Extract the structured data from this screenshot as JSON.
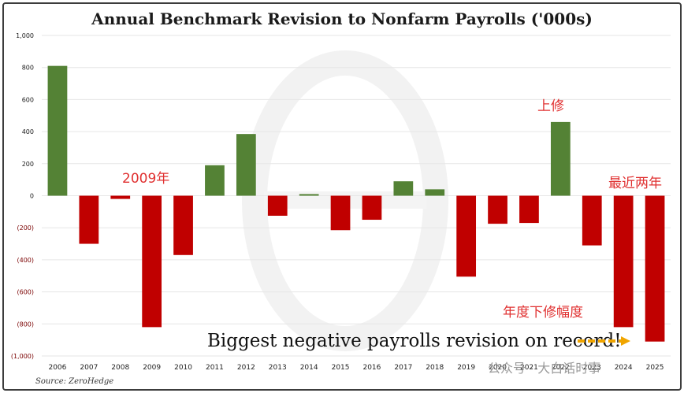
{
  "chart_data": {
    "type": "bar",
    "title": "Annual Benchmark Revision to Nonfarm Payrolls ('000s)",
    "categories": [
      "2006",
      "2007",
      "2008",
      "2009",
      "2010",
      "2011",
      "2012",
      "2013",
      "2014",
      "2015",
      "2016",
      "2017",
      "2018",
      "2019",
      "2020",
      "2021",
      "2022",
      "2023",
      "2024",
      "2025"
    ],
    "values": [
      810,
      -300,
      -20,
      -820,
      -370,
      190,
      385,
      -125,
      10,
      -215,
      -150,
      90,
      40,
      -505,
      -175,
      -170,
      460,
      -310,
      -820,
      -910
    ],
    "ylim": [
      -1000,
      1000
    ],
    "yticks": [
      1000,
      800,
      600,
      400,
      200,
      0,
      -200,
      -400,
      -600,
      -800,
      -1000
    ],
    "ytick_labels": [
      "1,000",
      "800",
      "600",
      "400",
      "200",
      "0",
      "(200)",
      "(400)",
      "(600)",
      "(800)",
      "(1,000)"
    ],
    "xlabel": "",
    "ylabel": "",
    "grid": true,
    "colors": {
      "positive": "#548235",
      "negative": "#c00000"
    },
    "annotations": {
      "a2009": "2009年",
      "a2022": "上修",
      "recent": "最近两年",
      "downward": "年度下修幅度",
      "biggest": "Biggest negative payrolls revision on record!"
    },
    "source": "Source: ZeroHedge"
  },
  "watermark": {
    "text": "公众号 · 大白话时事"
  }
}
